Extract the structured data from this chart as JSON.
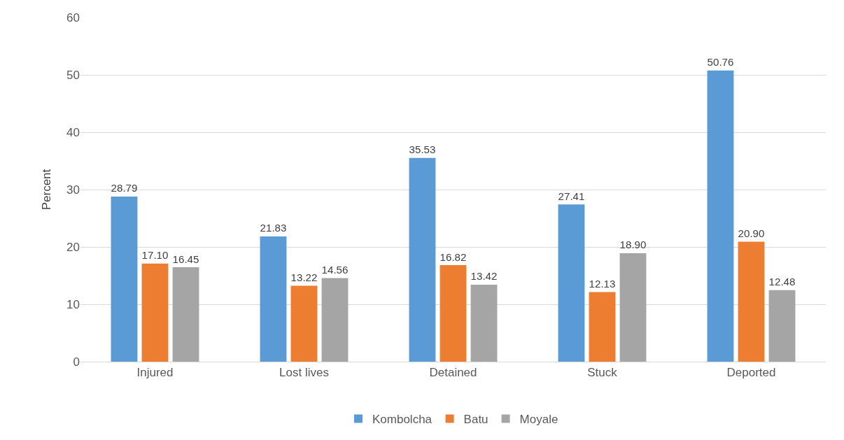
{
  "chart_data": {
    "type": "bar",
    "ylabel": "Percent",
    "categories": [
      "Injured",
      "Lost lives",
      "Detained",
      "Stuck",
      "Deported"
    ],
    "series": [
      {
        "name": "Kombolcha",
        "color": "#5b9bd5",
        "values": [
          28.79,
          21.83,
          35.53,
          27.41,
          50.76
        ],
        "value_labels": [
          "28.79",
          "21.83",
          "35.53",
          "27.41",
          "50.76"
        ]
      },
      {
        "name": "Batu",
        "color": "#ed7d31",
        "values": [
          17.1,
          13.22,
          16.82,
          12.13,
          20.9
        ],
        "value_labels": [
          "17.10",
          "13.22",
          "16.82",
          "12.13",
          "20.90"
        ]
      },
      {
        "name": "Moyale",
        "color": "#a5a5a5",
        "values": [
          16.45,
          14.56,
          13.42,
          18.9,
          12.48
        ],
        "value_labels": [
          "16.45",
          "14.56",
          "13.42",
          "18.90",
          "12.48"
        ]
      }
    ],
    "ylim": [
      0,
      60
    ],
    "yticks": [
      0,
      10,
      20,
      30,
      40,
      50,
      60
    ],
    "grid": "y",
    "legend": "bottom"
  }
}
